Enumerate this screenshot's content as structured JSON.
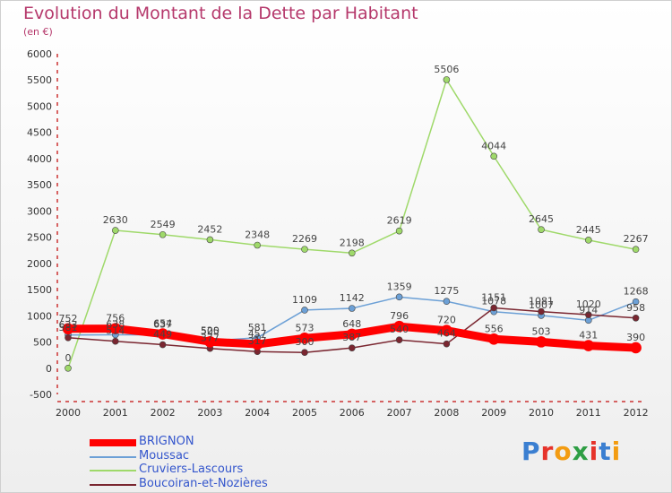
{
  "title": "Evolution du Montant de la Dette par Habitant",
  "subtitle": "(en €)",
  "logo": "Proxiti",
  "chart_data": {
    "type": "line",
    "x": [
      "2000",
      "2001",
      "2002",
      "2003",
      "2004",
      "2005",
      "2006",
      "2007",
      "2008",
      "2009",
      "2010",
      "2011",
      "2012"
    ],
    "ylim": [
      -500,
      6000
    ],
    "yticks": [
      -500,
      0,
      500,
      1000,
      1500,
      2000,
      2500,
      3000,
      3500,
      4000,
      4500,
      5000,
      5500,
      6000
    ],
    "grid": false,
    "legend_position": "bottom-left",
    "series": [
      {
        "name": "BRIGNON",
        "color": "#ff0000",
        "width": 9,
        "marker": 6,
        "values": [
          752,
          756,
          654,
          505,
          457,
          573,
          648,
          796,
          720,
          556,
          503,
          431,
          390
        ],
        "labels": [
          "752",
          "756",
          "654",
          "505",
          "457",
          "573",
          "648",
          "796",
          "720",
          "556",
          "503",
          "431",
          "390"
        ]
      },
      {
        "name": "Moussac",
        "color": "#6ca0d6",
        "width": 1.5,
        "marker": 3.5,
        "values": [
          633,
          638,
          637,
          520,
          581,
          1109,
          1142,
          1359,
          1275,
          1078,
          1007,
          914,
          1268
        ],
        "labels": [
          "633",
          "638",
          "637",
          "520",
          "581",
          "1109",
          "1142",
          "1359",
          "1275",
          "1078",
          "1007",
          "914",
          "1268"
        ]
      },
      {
        "name": "Cruviers-Lascours",
        "color": "#9fd96a",
        "width": 1.5,
        "marker": 3.5,
        "values": [
          0,
          2630,
          2549,
          2452,
          2348,
          2269,
          2198,
          2619,
          5506,
          4044,
          2645,
          2445,
          2267
        ],
        "labels": [
          "0",
          "2630",
          "2549",
          "2452",
          "2348",
          "2269",
          "2198",
          "2619",
          "5506",
          "4044",
          "2645",
          "2445",
          "2267"
        ]
      },
      {
        "name": "Boucoiran-et-Nozières",
        "color": "#7a2630",
        "width": 1.5,
        "marker": 3.5,
        "values": [
          581,
          514,
          449,
          377,
          317,
          300,
          387,
          540,
          464,
          1151,
          1081,
          1020,
          958
        ],
        "labels": [
          "581",
          "514",
          "449",
          "377",
          "317",
          "300",
          "387",
          "540",
          "464",
          "1151",
          "1081",
          "1020",
          "958"
        ]
      }
    ]
  }
}
